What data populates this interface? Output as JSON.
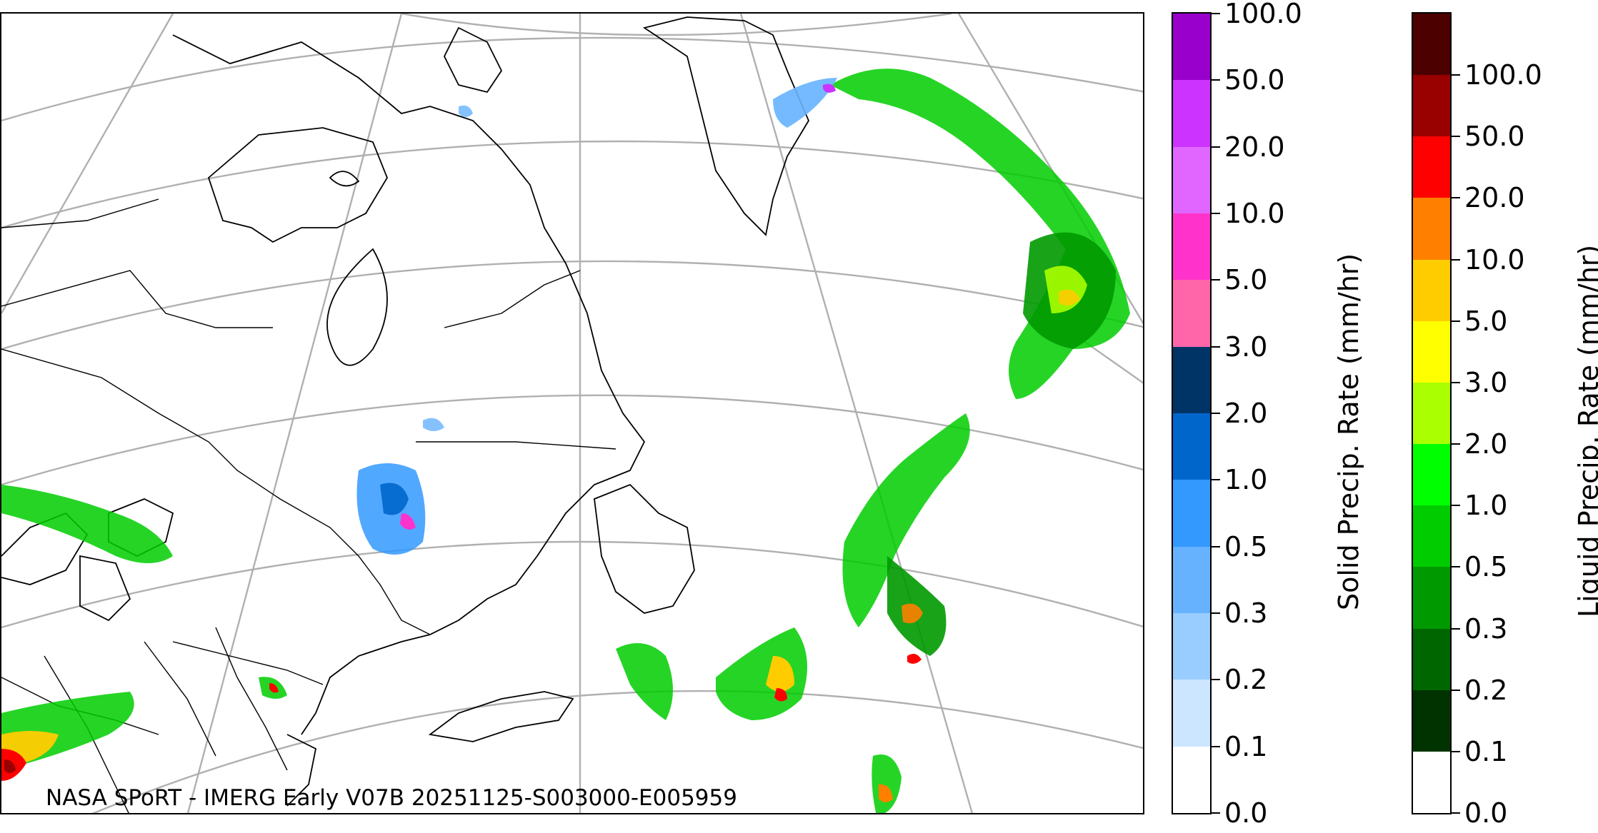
{
  "credit": "NASA SPoRT - IMERG Early V07B 20251125-S003000-E005959",
  "solid_colorbar": {
    "label": "Solid Precip. Rate (mm/hr)",
    "ticks": [
      "0.0",
      "0.1",
      "0.2",
      "0.3",
      "0.5",
      "1.0",
      "2.0",
      "3.0",
      "5.0",
      "10.0",
      "20.0",
      "50.0",
      "100.0"
    ],
    "colors": [
      "#ffffff",
      "#cce6ff",
      "#99ccff",
      "#66b2ff",
      "#3399ff",
      "#0066cc",
      "#003366",
      "#ff66aa",
      "#ff33cc",
      "#e066ff",
      "#cc33ff",
      "#9900cc"
    ]
  },
  "liquid_colorbar": {
    "label": "Liquid Precip. Rate (mm/hr)",
    "ticks": [
      "0.0",
      "0.1",
      "0.2",
      "0.3",
      "0.5",
      "1.0",
      "2.0",
      "3.0",
      "5.0",
      "10.0",
      "20.0",
      "50.0",
      "100.0"
    ],
    "colors": [
      "#ffffff",
      "#003300",
      "#006600",
      "#009900",
      "#00cc00",
      "#00ff00",
      "#aaff00",
      "#ffff00",
      "#ffcc00",
      "#ff8000",
      "#ff0000",
      "#990000",
      "#4d0000"
    ]
  }
}
